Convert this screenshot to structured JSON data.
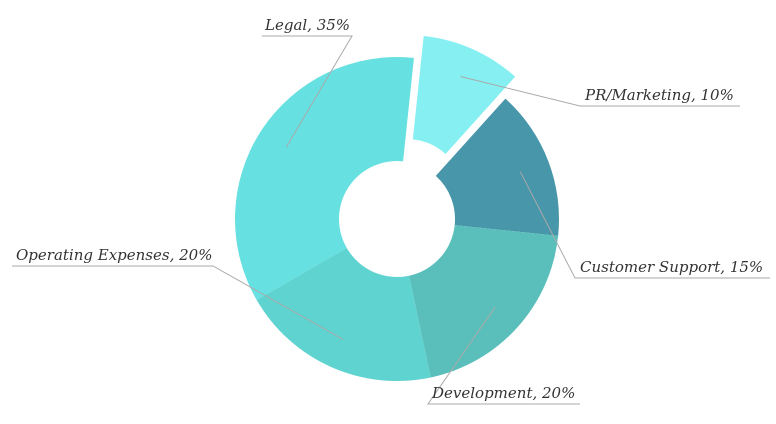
{
  "chart_data": {
    "type": "pie",
    "style": "donut",
    "title": "",
    "legend": "none",
    "slices": [
      {
        "label": "Legal",
        "value": 35,
        "color": "#66E0E0",
        "text": "Legal, 35%"
      },
      {
        "label": "PR/Marketing",
        "value": 10,
        "color": "#86EFF1",
        "text": "PR/Marketing, 10%",
        "exploded": true
      },
      {
        "label": "Customer Support",
        "value": 15,
        "color": "#4896A9",
        "text": "Customer Support, 15%"
      },
      {
        "label": "Development",
        "value": 20,
        "color": "#5ABFBA",
        "text": "Development, 20%"
      },
      {
        "label": "Operating Expenses",
        "value": 20,
        "color": "#5FD3CF",
        "text": "Operating Expenses, 20%"
      }
    ]
  }
}
